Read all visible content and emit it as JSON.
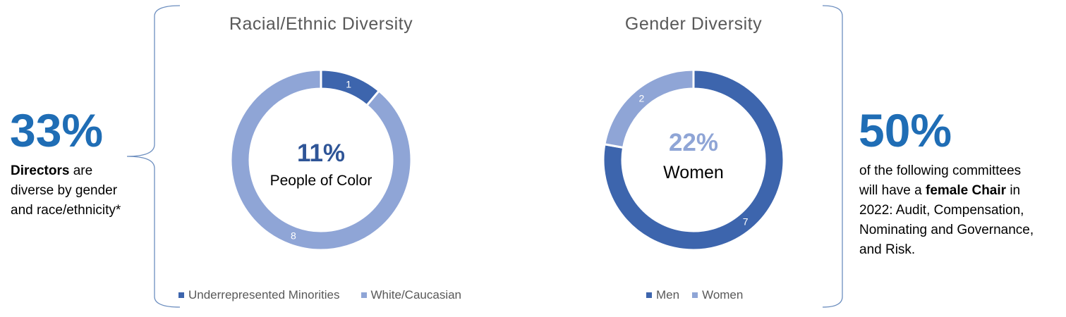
{
  "left_stat": {
    "value": "33%",
    "bold_word": "Directors",
    "line1_rest": " are",
    "line2": "diverse by gender",
    "line3": "and race/ethnicity*"
  },
  "right_stat": {
    "value": "50%",
    "line1": "of the following committees",
    "line2_pre": "will have a ",
    "line2_bold": "female Chair",
    "line2_post": " in",
    "line3": "2022: Audit, Compensation,",
    "line4": "Nominating and Governance,",
    "line5": "and Risk."
  },
  "colors": {
    "dark": "#3d65ad",
    "light": "#8fa5d6",
    "accent": "#1f6db5",
    "brace": "#6c8ebf"
  },
  "chart_data": [
    {
      "type": "pie",
      "donut": true,
      "title": "Racial/Ethnic Diversity",
      "categories": [
        "Underrepresented Minorities",
        "White/Caucasian"
      ],
      "values": [
        1,
        8
      ],
      "colors": [
        "#3d65ad",
        "#8fa5d6"
      ],
      "center_value": "11%",
      "center_label": "People of Color",
      "legend_position": "bottom"
    },
    {
      "type": "pie",
      "donut": true,
      "title": "Gender Diversity",
      "categories": [
        "Men",
        "Women"
      ],
      "values": [
        7,
        2
      ],
      "colors": [
        "#3d65ad",
        "#8fa5d6"
      ],
      "center_value": "22%",
      "center_label": "Women",
      "legend_position": "bottom"
    }
  ]
}
